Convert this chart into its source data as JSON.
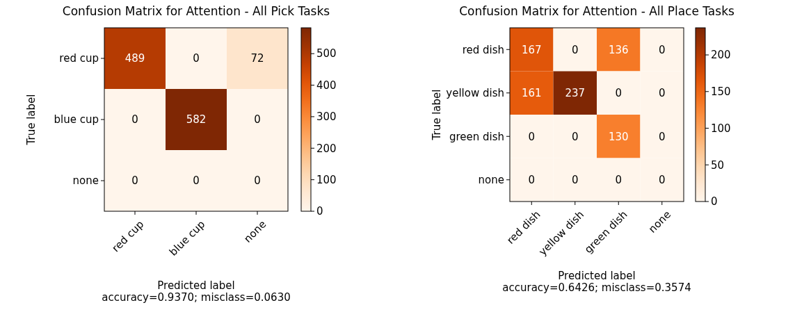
{
  "chart_data": [
    {
      "type": "heatmap",
      "title": "Confusion Matrix for Attention - All Pick Tasks",
      "xlabel": "Predicted label",
      "ylabel": "True label",
      "annotations": [
        "accuracy=0.9370; misclass=0.0630"
      ],
      "categories": [
        "red cup",
        "blue cup",
        "none"
      ],
      "y_categories": [
        "red cup",
        "blue cup",
        "none"
      ],
      "cells": [
        [
          489,
          0,
          72
        ],
        [
          0,
          582,
          0
        ],
        [
          0,
          0,
          0
        ]
      ],
      "clim": [
        0,
        582
      ],
      "cticks": [
        0,
        100,
        200,
        300,
        400,
        500
      ],
      "data_labels": true
    },
    {
      "type": "heatmap",
      "title": "Confusion Matrix for Attention - All Place Tasks",
      "xlabel": "Predicted label",
      "ylabel": "True label",
      "annotations": [
        "accuracy=0.6426; misclass=0.3574"
      ],
      "categories": [
        "red dish",
        "yellow dish",
        "green dish",
        "none"
      ],
      "y_categories": [
        "red dish",
        "yellow dish",
        "green dish",
        "none"
      ],
      "cells": [
        [
          167,
          0,
          136,
          0
        ],
        [
          161,
          237,
          0,
          0
        ],
        [
          0,
          0,
          130,
          0
        ],
        [
          0,
          0,
          0,
          0
        ]
      ],
      "clim": [
        0,
        237
      ],
      "cticks": [
        0,
        50,
        100,
        150,
        200
      ],
      "data_labels": true
    }
  ]
}
